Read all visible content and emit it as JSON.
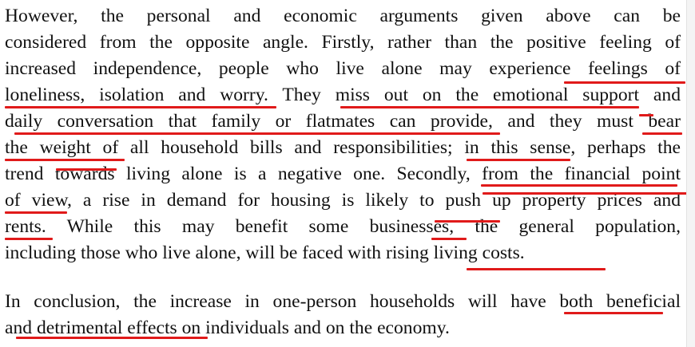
{
  "document": {
    "paragraphs": [
      {
        "lines": [
          "However, the personal and economic arguments given above can be",
          "considered from the opposite angle. Firstly, rather than the positive feeling of",
          "increased independence, people who live alone may experience feelings of",
          "loneliness, isolation and worry. They miss out on the emotional support and",
          "daily conversation that family or flatmates can provide, and they must bear",
          "the weight of all household bills and responsibilities; in this sense, perhaps the",
          "trend towards living alone is a negative one. Secondly, from the financial point",
          "of view, a rise in demand for housing is likely to push up property prices and",
          "rents. While this may benefit some businesses, the general population,",
          "including those who live alone, will be faced with rising living costs."
        ]
      },
      {
        "lines": [
          "In conclusion, the increase in one-person households will have both beneficial",
          "and detrimental effects on individuals and on the economy."
        ]
      }
    ],
    "annotation_color": "#e01a1a"
  }
}
